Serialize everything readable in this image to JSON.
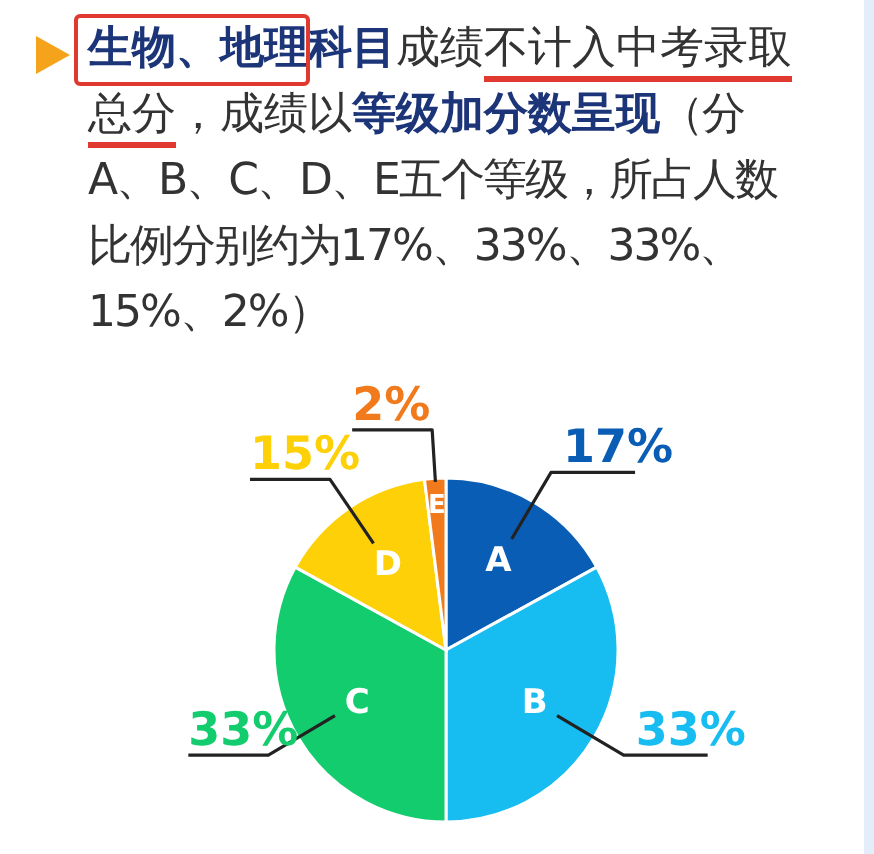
{
  "chart_data": {
    "type": "pie",
    "title": "生物、地理科目成绩不计入中考录取总分，成绩以等级加分数呈现（分A、B、C、D、E五个等级，所占人数比例分别约为17%、33%、33%、15%、2%）",
    "categories": [
      "A",
      "B",
      "C",
      "D",
      "E"
    ],
    "values": [
      17,
      33,
      33,
      15,
      2
    ],
    "colors": [
      "#0a5db5",
      "#17bcf0",
      "#12cc6d",
      "#fdd008",
      "#f17b1c"
    ],
    "value_labels": [
      "17%",
      "33%",
      "33%",
      "15%",
      "2%"
    ]
  }
}
